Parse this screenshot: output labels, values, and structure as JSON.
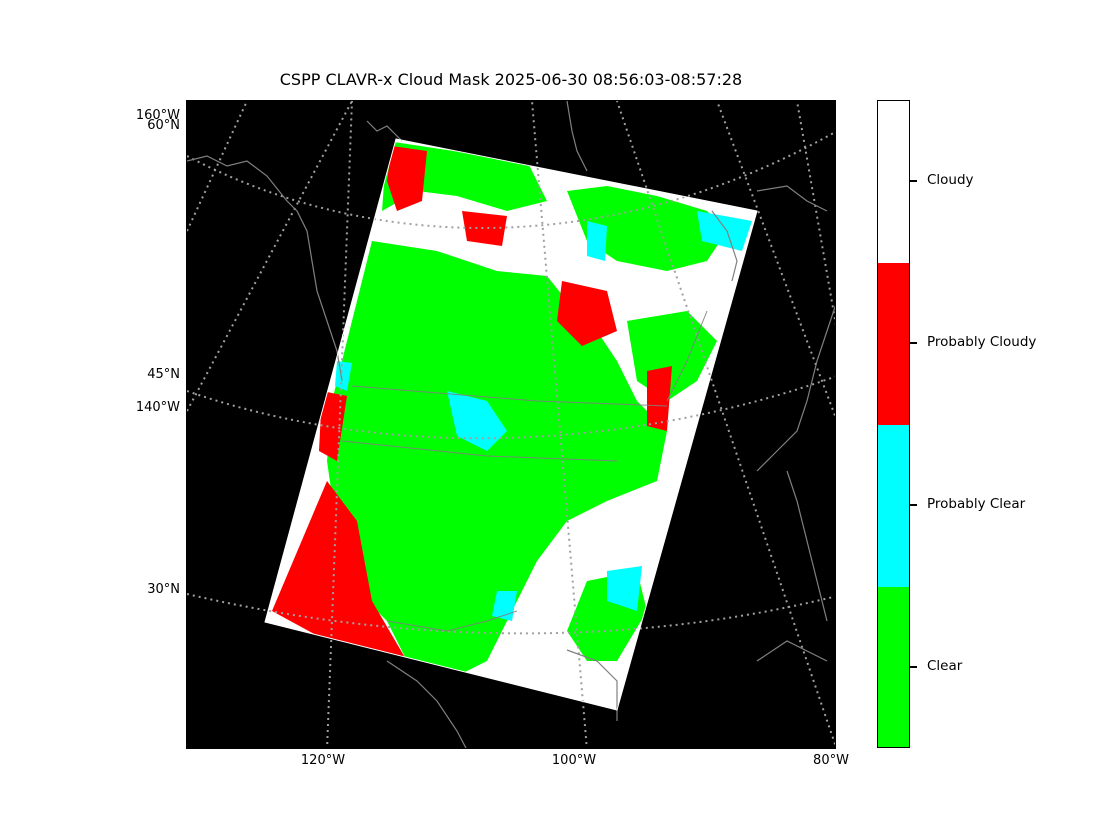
{
  "title": "CSPP CLAVR-x Cloud Mask 2025-06-30 08:56:03-08:57:28",
  "map": {
    "background_color": "#000000",
    "coastline_color": "#808080",
    "graticule_color": "#a0a0a0",
    "swath_edge_color": "#ffffff",
    "lat_labels": [
      "160°W",
      "60°N",
      "45°N",
      "140°W",
      "30°N"
    ],
    "lon_labels": [
      "120°W",
      "100°W",
      "80°W"
    ]
  },
  "colorbar": {
    "categories": [
      {
        "label": "Cloudy",
        "color": "#ffffff"
      },
      {
        "label": "Probably Cloudy",
        "color": "#ff0000"
      },
      {
        "label": "Probably Clear",
        "color": "#00ffff"
      },
      {
        "label": "Clear",
        "color": "#00ff00"
      }
    ]
  }
}
